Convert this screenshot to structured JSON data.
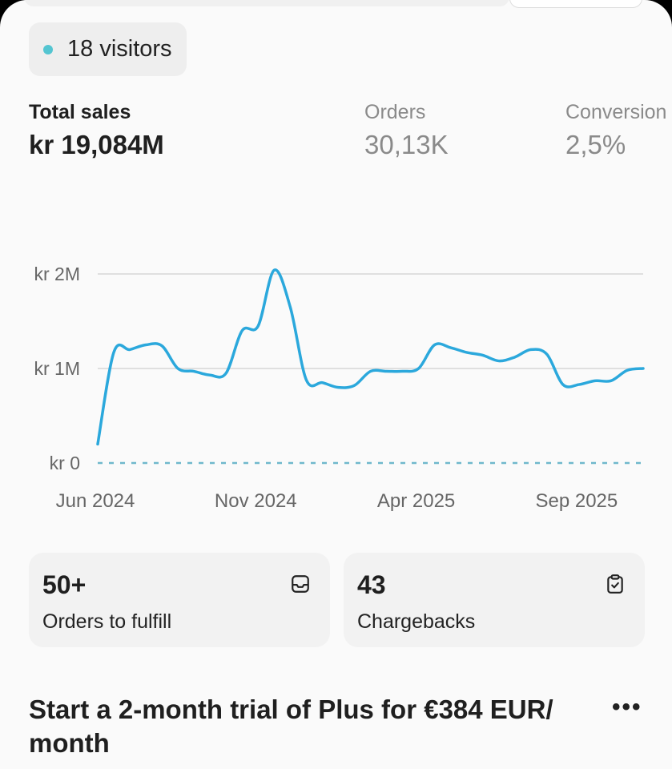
{
  "visitors": {
    "label": "18 visitors",
    "dot_color": "#54c5d1"
  },
  "metrics": [
    {
      "label": "Total sales",
      "value": "kr 19,084M"
    },
    {
      "label": "Orders",
      "value": "30,13K"
    },
    {
      "label": "Conversion",
      "value": "2,5%"
    }
  ],
  "chart_data": {
    "type": "line",
    "y_tick_labels": [
      "kr 2M",
      "kr 1M",
      "kr 0"
    ],
    "y_ticks": [
      2,
      1,
      0
    ],
    "ylim": [
      0,
      2
    ],
    "x_tick_labels": [
      "Jun 2024",
      "Nov 2024",
      "Apr 2025",
      "Sep 2025"
    ],
    "x": [
      "2024-06-01",
      "2024-06-15",
      "2024-07-01",
      "2024-07-15",
      "2024-08-01",
      "2024-08-15",
      "2024-09-01",
      "2024-09-15",
      "2024-10-01",
      "2024-10-15",
      "2024-11-01",
      "2024-11-15",
      "2024-12-01",
      "2024-12-15",
      "2025-01-01",
      "2025-01-15",
      "2025-02-01",
      "2025-02-15",
      "2025-03-01",
      "2025-03-15",
      "2025-04-01",
      "2025-04-15",
      "2025-05-01",
      "2025-05-15",
      "2025-06-01",
      "2025-06-15",
      "2025-07-01",
      "2025-07-15",
      "2025-08-01",
      "2025-08-15",
      "2025-09-01",
      "2025-09-15",
      "2025-10-01",
      "2025-10-15",
      "2025-11-01"
    ],
    "series": [
      {
        "color": "#2ba8dc",
        "values": [
          0.2,
          1.17,
          1.2,
          1.25,
          1.24,
          1.0,
          0.97,
          0.93,
          0.95,
          1.4,
          1.45,
          2.04,
          1.65,
          0.88,
          0.85,
          0.8,
          0.82,
          0.97,
          0.97,
          0.97,
          1.0,
          1.25,
          1.22,
          1.17,
          1.14,
          1.08,
          1.12,
          1.2,
          1.15,
          0.83,
          0.83,
          0.87,
          0.87,
          0.98,
          1.0
        ]
      }
    ],
    "zero_line_style": "dashed",
    "grid": true
  },
  "tiles": [
    {
      "number": "50+",
      "caption": "Orders to fulfill",
      "icon": "inbox-icon"
    },
    {
      "number": "43",
      "caption": "Chargebacks",
      "icon": "clipboard-check-icon"
    }
  ],
  "promo": {
    "title": "Start a 2-month trial of Plus for €384 EUR/ month",
    "more_label": "•••"
  }
}
